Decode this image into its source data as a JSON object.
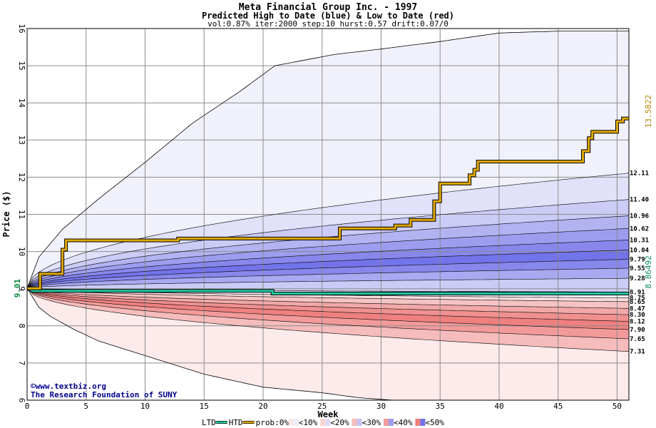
{
  "chart_data": {
    "type": "area",
    "title": "Meta Financial Group Inc. - 1997",
    "subtitle": "Predicted High to Date (blue) &  Low to Date (red)",
    "params": "vol:0.87% iter:2000 step:10 hurst:0.57 drift:0.07/0",
    "xlabel": "Week",
    "ylabel": "Price ($)",
    "xlim": [
      0,
      51
    ],
    "ylim": [
      6,
      16
    ],
    "x_ticks": [
      0,
      5,
      10,
      15,
      20,
      25,
      30,
      35,
      40,
      45,
      50
    ],
    "y_ticks": [
      6,
      7,
      8,
      9,
      10,
      11,
      12,
      13,
      14,
      15,
      16
    ],
    "grid": true,
    "start_price": 9.01,
    "start_label": "9.01",
    "upper_envelope": [
      [
        0,
        9.01
      ],
      [
        1,
        9.85
      ],
      [
        3,
        10.6
      ],
      [
        6,
        11.4
      ],
      [
        10,
        12.4
      ],
      [
        14,
        13.45
      ],
      [
        18,
        14.3
      ],
      [
        21,
        15.0
      ],
      [
        26,
        15.3
      ],
      [
        30,
        15.45
      ],
      [
        35,
        15.65
      ],
      [
        40,
        15.88
      ],
      [
        45,
        15.93
      ],
      [
        51,
        15.93
      ]
    ],
    "lower_envelope": [
      [
        0,
        9.01
      ],
      [
        1,
        8.5
      ],
      [
        2,
        8.25
      ],
      [
        4,
        7.9
      ],
      [
        6,
        7.6
      ],
      [
        10,
        7.2
      ],
      [
        15,
        6.7
      ],
      [
        20,
        6.35
      ],
      [
        25,
        6.2
      ],
      [
        28,
        6.07
      ],
      [
        31,
        6.0
      ],
      [
        51,
        6.0
      ]
    ],
    "high_bands": [
      {
        "label": "12.11",
        "end": 12.11,
        "color": "#e1e1fa"
      },
      {
        "label": "11.40",
        "end": 11.4,
        "color": "#cbcbf6"
      },
      {
        "label": "10.96",
        "end": 10.96,
        "color": "#b3b3f2"
      },
      {
        "label": "10.62",
        "end": 10.62,
        "color": "#9d9df0"
      },
      {
        "label": "10.31",
        "end": 10.31,
        "color": "#8787ec"
      },
      {
        "label": "10.04",
        "end": 10.04,
        "color": "#7373ea"
      },
      {
        "label": "9.79",
        "end": 9.79,
        "color": "#8787ec"
      },
      {
        "label": "9.55",
        "end": 9.55,
        "color": "#a9a9f2"
      },
      {
        "label": "9.28",
        "end": 9.28,
        "color": "#cbcbf6"
      },
      {
        "label": "8.91",
        "end": 8.91,
        "color": "#e1e1fa"
      }
    ],
    "low_bands": [
      {
        "label": "8.75",
        "end": 8.75,
        "color": "#fadcdc"
      },
      {
        "label": "8.65",
        "end": 8.65,
        "color": "#f5c3c3"
      },
      {
        "label": "8.47",
        "end": 8.47,
        "color": "#f2a8a8"
      },
      {
        "label": "8.30",
        "end": 8.3,
        "color": "#f09090"
      },
      {
        "label": "8.12",
        "end": 8.12,
        "color": "#ef8080"
      },
      {
        "label": "7.90",
        "end": 7.9,
        "color": "#f29a9a"
      },
      {
        "label": "7.65",
        "end": 7.65,
        "color": "#f6bcbc"
      },
      {
        "label": "7.31",
        "end": 7.31,
        "color": "#fadcdc"
      }
    ],
    "htd_series": {
      "name": "HTD",
      "color": "#e0a800",
      "end_label": "13.5822",
      "points": [
        [
          0,
          9.01
        ],
        [
          1.1,
          9.01
        ],
        [
          1.1,
          9.4
        ],
        [
          3.0,
          9.4
        ],
        [
          3.0,
          10.05
        ],
        [
          3.3,
          10.05
        ],
        [
          3.3,
          10.3
        ],
        [
          12.8,
          10.3
        ],
        [
          12.8,
          10.35
        ],
        [
          26.5,
          10.35
        ],
        [
          26.5,
          10.62
        ],
        [
          31.2,
          10.62
        ],
        [
          31.2,
          10.7
        ],
        [
          32.5,
          10.7
        ],
        [
          32.5,
          10.85
        ],
        [
          34.5,
          10.85
        ],
        [
          34.5,
          11.35
        ],
        [
          35.0,
          11.35
        ],
        [
          35.0,
          11.83
        ],
        [
          37.5,
          11.83
        ],
        [
          37.5,
          12.05
        ],
        [
          37.9,
          12.05
        ],
        [
          37.9,
          12.2
        ],
        [
          38.2,
          12.2
        ],
        [
          38.2,
          12.42
        ],
        [
          47.1,
          12.42
        ],
        [
          47.1,
          12.7
        ],
        [
          47.6,
          12.7
        ],
        [
          47.6,
          13.05
        ],
        [
          47.9,
          13.05
        ],
        [
          47.9,
          13.22
        ],
        [
          50.0,
          13.22
        ],
        [
          50.0,
          13.5
        ],
        [
          50.5,
          13.5
        ],
        [
          50.5,
          13.58
        ],
        [
          51,
          13.58
        ]
      ]
    },
    "ltd_series": {
      "name": "LTD",
      "color": "#1fc8a0",
      "end_label": "8.86492",
      "points": [
        [
          0,
          9.01
        ],
        [
          0.5,
          8.94
        ],
        [
          20.8,
          8.94
        ],
        [
          20.8,
          8.87
        ],
        [
          51,
          8.87
        ]
      ]
    },
    "legend": [
      {
        "kind": "line",
        "label": "LTD",
        "color": "#1fc8a0"
      },
      {
        "kind": "line",
        "label": "HTD",
        "color": "#e0a800"
      },
      {
        "kind": "text",
        "label": "prob:0%"
      },
      {
        "kind": "swatch",
        "label": "<10%",
        "colors": [
          "#fde8e8",
          "#ececfb"
        ]
      },
      {
        "kind": "swatch",
        "label": "<20%",
        "colors": [
          "#fad4d4",
          "#dcdcf8"
        ]
      },
      {
        "kind": "swatch",
        "label": "<30%",
        "colors": [
          "#f5bcbc",
          "#c4c4f4"
        ]
      },
      {
        "kind": "swatch",
        "label": "<40%",
        "colors": [
          "#f29a9a",
          "#9d9df0"
        ]
      },
      {
        "kind": "swatch",
        "label": "<50%",
        "colors": [
          "#ef8080",
          "#7373ea"
        ]
      }
    ],
    "credits": [
      "©www.textbiz.org",
      "The Research Foundation of SUNY"
    ]
  }
}
